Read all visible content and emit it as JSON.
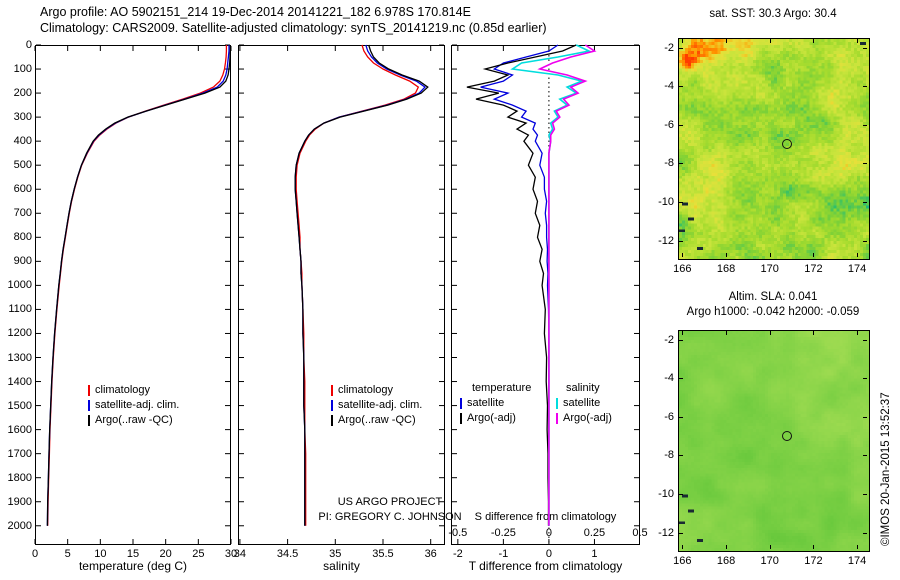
{
  "header": {
    "line1": "Argo profile: AO 5902151_214 19-Dec-2014 20141221_182 6.978S 170.814E",
    "line2": "Climatology: CARS2009. Satellite-adjusted climatology: synTS_20141219.nc (0.85d earlier)"
  },
  "watermark": "©IMOS 20-Jan-2015 13:52:37",
  "chart_data": {
    "type": "line",
    "depth_max": 2080,
    "depth_ticks": [
      0,
      100,
      200,
      300,
      400,
      500,
      600,
      700,
      800,
      900,
      1000,
      1100,
      1200,
      1300,
      1400,
      1500,
      1600,
      1700,
      1800,
      1900,
      2000
    ],
    "depths": [
      0,
      25,
      50,
      75,
      100,
      125,
      150,
      175,
      200,
      225,
      250,
      275,
      300,
      325,
      350,
      375,
      400,
      450,
      500,
      550,
      600,
      650,
      700,
      750,
      800,
      850,
      900,
      950,
      1000,
      1100,
      1200,
      1300,
      1400,
      1500,
      1600,
      1700,
      1800,
      1900,
      2000
    ],
    "panels": [
      {
        "id": "temperature",
        "xlabel": "temperature (deg C)",
        "xlim": [
          0,
          30
        ],
        "xticks": [
          0,
          5,
          10,
          15,
          20,
          25,
          30
        ],
        "series": [
          {
            "name": "climatology",
            "color": "#ee0000",
            "values": [
              29.3,
              29.3,
              29.25,
              29.15,
              29.0,
              28.75,
              28.3,
              27.3,
              25.3,
              22.6,
              19.7,
              16.9,
              14.3,
              12.4,
              11.0,
              9.9,
              9.05,
              8.0,
              7.15,
              6.55,
              6.05,
              5.6,
              5.25,
              4.95,
              4.65,
              4.35,
              4.1,
              3.9,
              3.7,
              3.35,
              3.05,
              2.8,
              2.6,
              2.45,
              2.3,
              2.2,
              2.1,
              2.0,
              1.95
            ]
          },
          {
            "name": "satellite-adj. clim.",
            "color": "#0000dd",
            "values": [
              29.7,
              29.7,
              29.6,
              29.5,
              29.4,
              29.2,
              28.8,
              27.9,
              25.7,
              22.9,
              19.9,
              17.0,
              14.25,
              12.3,
              10.9,
              9.8,
              8.95,
              7.95,
              7.1,
              6.5,
              6.0,
              5.55,
              5.2,
              4.9,
              4.6,
              4.3,
              4.05,
              3.85,
              3.65,
              3.3,
              3.0,
              2.75,
              2.55,
              2.4,
              2.25,
              2.15,
              2.05,
              1.95,
              1.9
            ]
          },
          {
            "name": "Argo(..raw -QC)",
            "color": "#000000",
            "values": [
              29.9,
              29.9,
              29.85,
              29.8,
              29.7,
              29.55,
              29.2,
              28.3,
              26.0,
              23.0,
              20.0,
              17.0,
              14.2,
              12.2,
              10.8,
              9.7,
              8.9,
              7.9,
              7.1,
              6.5,
              6.0,
              5.55,
              5.2,
              4.9,
              4.6,
              4.3,
              4.05,
              3.85,
              3.65,
              3.3,
              3.0,
              2.75,
              2.55,
              2.4,
              2.25,
              2.15,
              2.05,
              1.95,
              1.9
            ]
          }
        ]
      },
      {
        "id": "salinity",
        "xlabel": "salinity",
        "xlim": [
          33.98,
          36.15
        ],
        "xticks": [
          34,
          34.5,
          35,
          35.5,
          36
        ],
        "annotations": [
          "US ARGO PROJECT",
          "PI: GREGORY C. JOHNSON"
        ],
        "series": [
          {
            "name": "climatology",
            "color": "#ee0000",
            "values": [
              35.28,
              35.3,
              35.34,
              35.4,
              35.5,
              35.63,
              35.78,
              35.87,
              35.84,
              35.72,
              35.52,
              35.28,
              35.04,
              34.88,
              34.79,
              34.73,
              34.69,
              34.63,
              34.6,
              34.59,
              34.59,
              34.6,
              34.61,
              34.62,
              34.63,
              34.63,
              34.64,
              34.65,
              34.65,
              34.66,
              34.67,
              34.67,
              34.68,
              34.68,
              34.68,
              34.69,
              34.69,
              34.69,
              34.69
            ]
          },
          {
            "name": "satellite-adj. clim.",
            "color": "#0000dd",
            "values": [
              35.32,
              35.34,
              35.38,
              35.44,
              35.54,
              35.68,
              35.85,
              35.94,
              35.88,
              35.74,
              35.54,
              35.29,
              35.04,
              34.88,
              34.78,
              34.72,
              34.68,
              34.62,
              34.59,
              34.58,
              34.58,
              34.59,
              34.6,
              34.61,
              34.62,
              34.63,
              34.64,
              34.64,
              34.65,
              34.66,
              34.66,
              34.67,
              34.67,
              34.67,
              34.68,
              34.68,
              34.68,
              34.68,
              34.68
            ]
          },
          {
            "name": "Argo(..raw -QC)",
            "color": "#000000",
            "values": [
              35.35,
              35.37,
              35.4,
              35.46,
              35.56,
              35.7,
              35.88,
              35.97,
              35.9,
              35.75,
              35.55,
              35.3,
              35.05,
              34.88,
              34.78,
              34.72,
              34.68,
              34.62,
              34.59,
              34.58,
              34.58,
              34.59,
              34.6,
              34.61,
              34.62,
              34.63,
              34.64,
              34.64,
              34.65,
              34.66,
              34.66,
              34.67,
              34.67,
              34.67,
              34.68,
              34.68,
              34.68,
              34.68,
              34.68
            ]
          }
        ]
      },
      {
        "id": "difference",
        "xlabel": "T difference from climatology",
        "xlim": [
          -2.15,
          2.0
        ],
        "xticks": [
          -2,
          -1,
          0,
          1
        ],
        "s_axis": {
          "label": "S difference from climatology",
          "ticks": [
            -0.5,
            -0.25,
            0,
            0.25,
            0.5
          ],
          "scale": 4
        },
        "series": [
          {
            "group": "temperature",
            "name": "satellite",
            "color": "#0000dd",
            "values": [
              0.2,
              0.0,
              -0.5,
              -1.0,
              -1.2,
              -0.8,
              -1.0,
              -1.5,
              -0.9,
              -1.2,
              -0.8,
              -0.5,
              -0.6,
              -0.3,
              -0.35,
              -0.25,
              -0.3,
              -0.15,
              -0.2,
              -0.1,
              -0.1,
              -0.05,
              -0.08,
              -0.05,
              -0.05,
              -0.03,
              -0.04,
              -0.02,
              -0.03,
              -0.01,
              0,
              0,
              0,
              0,
              0,
              0,
              0,
              0,
              0
            ]
          },
          {
            "group": "temperature",
            "name": "Argo(-adj)",
            "color": "#000000",
            "values": [
              0.6,
              0.3,
              -0.3,
              -0.9,
              -1.4,
              -0.9,
              -1.2,
              -1.8,
              -1.1,
              -1.6,
              -1.0,
              -0.7,
              -0.9,
              -0.5,
              -0.7,
              -0.45,
              -0.55,
              -0.35,
              -0.45,
              -0.3,
              -0.35,
              -0.25,
              -0.3,
              -0.2,
              -0.25,
              -0.15,
              -0.2,
              -0.12,
              -0.15,
              -0.08,
              -0.1,
              -0.05,
              -0.06,
              -0.03,
              -0.04,
              -0.02,
              -0.02,
              -0.01,
              -0.01
            ]
          },
          {
            "group": "salinity",
            "name": "satellite",
            "color": "#00dddd",
            "scale": 4,
            "values": [
              0.15,
              0.22,
              0.05,
              -0.15,
              -0.2,
              0.05,
              0.18,
              0.1,
              0.15,
              0.06,
              0.1,
              0.03,
              0.05,
              0.01,
              0.02,
              0.0,
              0.01,
              0,
              0,
              0,
              0,
              0,
              0,
              0,
              0,
              0,
              0,
              0,
              0,
              0,
              0,
              0,
              0,
              0,
              0,
              0,
              0,
              0,
              0
            ]
          },
          {
            "group": "salinity",
            "name": "Argo(-adj)",
            "color": "#ee00ee",
            "scale": 4,
            "values": [
              0.2,
              0.25,
              0.12,
              0.02,
              -0.05,
              0.1,
              0.2,
              0.12,
              0.16,
              0.08,
              0.11,
              0.04,
              0.06,
              0.02,
              0.03,
              0.01,
              0.01,
              0,
              0,
              0,
              0,
              0,
              0,
              0,
              0,
              0,
              0,
              0,
              0,
              0,
              0,
              0,
              0,
              0,
              0,
              0,
              0,
              0,
              0
            ]
          }
        ]
      }
    ],
    "maps": [
      {
        "id": "sst",
        "title": "sat. SST: 30.3 Argo: 30.4",
        "xticks": [
          166,
          168,
          170,
          172,
          174
        ],
        "yticks": [
          -2,
          -4,
          -6,
          -8,
          -10,
          -12
        ],
        "lon_range": [
          165.8,
          174.5
        ],
        "lat_range": [
          -1.5,
          -12.9
        ],
        "marker": {
          "lon": 170.8,
          "lat": -7.0
        },
        "palette": [
          "#0aa9a0",
          "#2fbf6b",
          "#7ed136",
          "#a8dc2e",
          "#c8e43c",
          "#e8e03a",
          "#ff9a00",
          "#ff3c00"
        ]
      },
      {
        "id": "sla",
        "title_line1": "Altim. SLA: 0.041",
        "title_line2": "Argo h1000: -0.042 h2000: -0.059",
        "xticks": [
          166,
          168,
          170,
          172,
          174
        ],
        "yticks": [
          -2,
          -4,
          -6,
          -8,
          -10,
          -12
        ],
        "lon_range": [
          165.8,
          174.5
        ],
        "lat_range": [
          -1.5,
          -12.9
        ],
        "marker": {
          "lon": 170.8,
          "lat": -7.0
        },
        "palette": [
          "#58c236",
          "#74cd41",
          "#92d74c",
          "#b2e158"
        ]
      }
    ]
  }
}
